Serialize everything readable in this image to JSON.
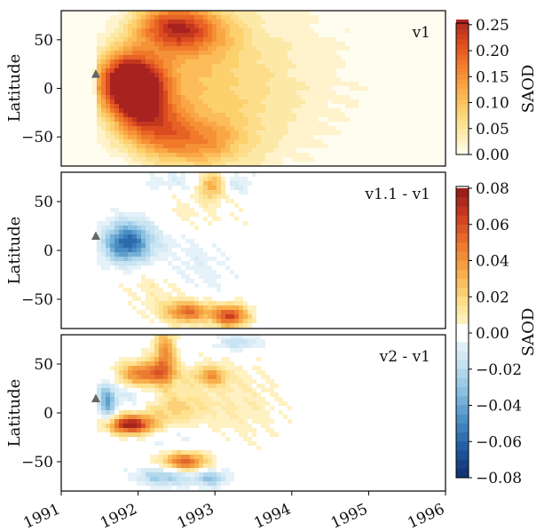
{
  "chart_data": [
    {
      "type": "heatmap",
      "panel_label": "v1",
      "ylabel": "Latitude",
      "colorbar_label": "SAOD",
      "y_ticks": [
        50,
        0,
        -50
      ],
      "y_tick_labels": [
        "50",
        "0",
        "−50"
      ],
      "ylim": [
        -80,
        80
      ],
      "xlim": [
        1991.0,
        1996.0
      ],
      "colorbar_ticks": [
        0.25,
        0.2,
        0.15,
        0.1,
        0.05,
        0.0
      ],
      "colorbar_tick_labels": [
        "0.25",
        "0.20",
        "0.15",
        "0.10",
        "0.05",
        "0.00"
      ],
      "clim": [
        0.0,
        0.27
      ],
      "colormap": [
        "#fffdf0",
        "#fde9a7",
        "#fcd06d",
        "#f9a744",
        "#f17a2a",
        "#dc4a20",
        "#a82220"
      ],
      "marker": {
        "x": 1991.45,
        "y": 15,
        "shape": "triangle",
        "color": "#666666"
      },
      "features": [
        {
          "x": 1991.85,
          "y": 5,
          "sx": 0.28,
          "sy": 22,
          "v": 0.26
        },
        {
          "x": 1992.05,
          "y": -5,
          "sx": 0.25,
          "sy": 22,
          "v": 0.1
        },
        {
          "x": 1992.35,
          "y": 65,
          "sx": 0.3,
          "sy": 16,
          "v": 0.13
        },
        {
          "x": 1992.75,
          "y": 60,
          "sx": 0.35,
          "sy": 18,
          "v": 0.12
        },
        {
          "x": 1992.15,
          "y": -35,
          "sx": 0.32,
          "sy": 20,
          "v": 0.11
        },
        {
          "x": 1992.7,
          "y": -55,
          "sx": 0.45,
          "sy": 18,
          "v": 0.12
        },
        {
          "x": 1992.3,
          "y": 15,
          "sx": 0.5,
          "sy": 40,
          "v": 0.06
        },
        {
          "x": 1993.1,
          "y": 0,
          "sx": 0.6,
          "sy": 55,
          "v": 0.05
        },
        {
          "x": 1993.6,
          "y": 0,
          "sx": 0.9,
          "sy": 70,
          "v": 0.025
        },
        {
          "x": 1994.5,
          "y": 20,
          "sx": 1.1,
          "sy": 60,
          "v": 0.008
        }
      ],
      "onset": 1991.48
    },
    {
      "type": "heatmap",
      "panel_label": "v1.1 - v1",
      "ylabel": "Latitude",
      "colorbar_label": "SAOD",
      "y_ticks": [
        50,
        0,
        -50
      ],
      "y_tick_labels": [
        "50",
        "0",
        "−50"
      ],
      "ylim": [
        -80,
        80
      ],
      "xlim": [
        1991.0,
        1996.0
      ],
      "colorbar_ticks": [
        0.08,
        0.06,
        0.04,
        0.02,
        0.0,
        -0.02,
        -0.04,
        -0.06,
        -0.08
      ],
      "colorbar_tick_labels": [
        "0.08",
        "0.06",
        "0.04",
        "0.02",
        "0.00",
        "−0.02",
        "−0.04",
        "−0.06",
        "−0.08"
      ],
      "clim": [
        -0.08,
        0.08
      ],
      "marker": {
        "x": 1991.45,
        "y": 15,
        "shape": "triangle",
        "color": "#666666"
      },
      "features": [
        {
          "x": 1991.85,
          "y": 8,
          "sx": 0.2,
          "sy": 14,
          "v": -0.05
        },
        {
          "x": 1992.05,
          "y": 12,
          "sx": 0.35,
          "sy": 22,
          "v": -0.015
        },
        {
          "x": 1992.95,
          "y": 67,
          "sx": 0.12,
          "sy": 10,
          "v": 0.035
        },
        {
          "x": 1993.3,
          "y": 68,
          "sx": 0.15,
          "sy": 8,
          "v": -0.012
        },
        {
          "x": 1992.5,
          "y": 70,
          "sx": 0.3,
          "sy": 8,
          "v": -0.01
        },
        {
          "x": 1992.65,
          "y": -63,
          "sx": 0.22,
          "sy": 8,
          "v": 0.05
        },
        {
          "x": 1993.2,
          "y": -67,
          "sx": 0.16,
          "sy": 8,
          "v": 0.06
        },
        {
          "x": 1992.2,
          "y": -35,
          "sx": 0.3,
          "sy": 20,
          "v": 0.01
        },
        {
          "x": 1992.8,
          "y": -20,
          "sx": 0.3,
          "sy": 25,
          "v": -0.008
        },
        {
          "x": 1992.5,
          "y": 35,
          "sx": 0.6,
          "sy": 20,
          "v": 0.008
        }
      ]
    },
    {
      "type": "heatmap",
      "panel_label": "v2 - v1",
      "ylabel": "Latitude",
      "colorbar_label": "SAOD",
      "y_ticks": [
        50,
        0,
        -50
      ],
      "y_tick_labels": [
        "50",
        "0",
        "−50"
      ],
      "ylim": [
        -80,
        80
      ],
      "xlim": [
        1991.0,
        1996.0
      ],
      "x_ticks": [
        1991,
        1992,
        1993,
        1994,
        1995,
        1996
      ],
      "x_tick_labels": [
        "1991",
        "1992",
        "1993",
        "1994",
        "1995",
        "1996"
      ],
      "colorbar_ticks": [
        0.08,
        0.06,
        0.04,
        0.02,
        0.0,
        -0.02,
        -0.04,
        -0.06,
        -0.08
      ],
      "colorbar_tick_labels": [
        "0.08",
        "0.06",
        "0.04",
        "0.02",
        "0.00",
        "−0.02",
        "−0.04",
        "−0.06",
        "−0.08"
      ],
      "clim": [
        -0.08,
        0.08
      ],
      "marker": {
        "x": 1991.45,
        "y": 15,
        "shape": "triangle",
        "color": "#666666"
      },
      "features": [
        {
          "x": 1991.9,
          "y": -12,
          "sx": 0.22,
          "sy": 7,
          "v": 0.075
        },
        {
          "x": 1992.1,
          "y": 40,
          "sx": 0.25,
          "sy": 9,
          "v": 0.05
        },
        {
          "x": 1992.35,
          "y": 60,
          "sx": 0.1,
          "sy": 18,
          "v": 0.04
        },
        {
          "x": 1992.95,
          "y": 38,
          "sx": 0.15,
          "sy": 7,
          "v": 0.035
        },
        {
          "x": 1991.6,
          "y": 10,
          "sx": 0.08,
          "sy": 16,
          "v": -0.035
        },
        {
          "x": 1991.9,
          "y": 18,
          "sx": 0.3,
          "sy": 8,
          "v": -0.012
        },
        {
          "x": 1992.6,
          "y": -50,
          "sx": 0.2,
          "sy": 7,
          "v": 0.055
        },
        {
          "x": 1992.35,
          "y": -65,
          "sx": 0.25,
          "sy": 7,
          "v": -0.03
        },
        {
          "x": 1992.95,
          "y": -67,
          "sx": 0.15,
          "sy": 6,
          "v": -0.03
        },
        {
          "x": 1993.3,
          "y": 72,
          "sx": 0.2,
          "sy": 6,
          "v": -0.02
        },
        {
          "x": 1992.45,
          "y": 5,
          "sx": 0.25,
          "sy": 14,
          "v": 0.02
        },
        {
          "x": 1993.2,
          "y": 10,
          "sx": 0.5,
          "sy": 30,
          "v": 0.01
        },
        {
          "x": 1992.5,
          "y": -25,
          "sx": 0.4,
          "sy": 12,
          "v": -0.008
        }
      ]
    }
  ]
}
